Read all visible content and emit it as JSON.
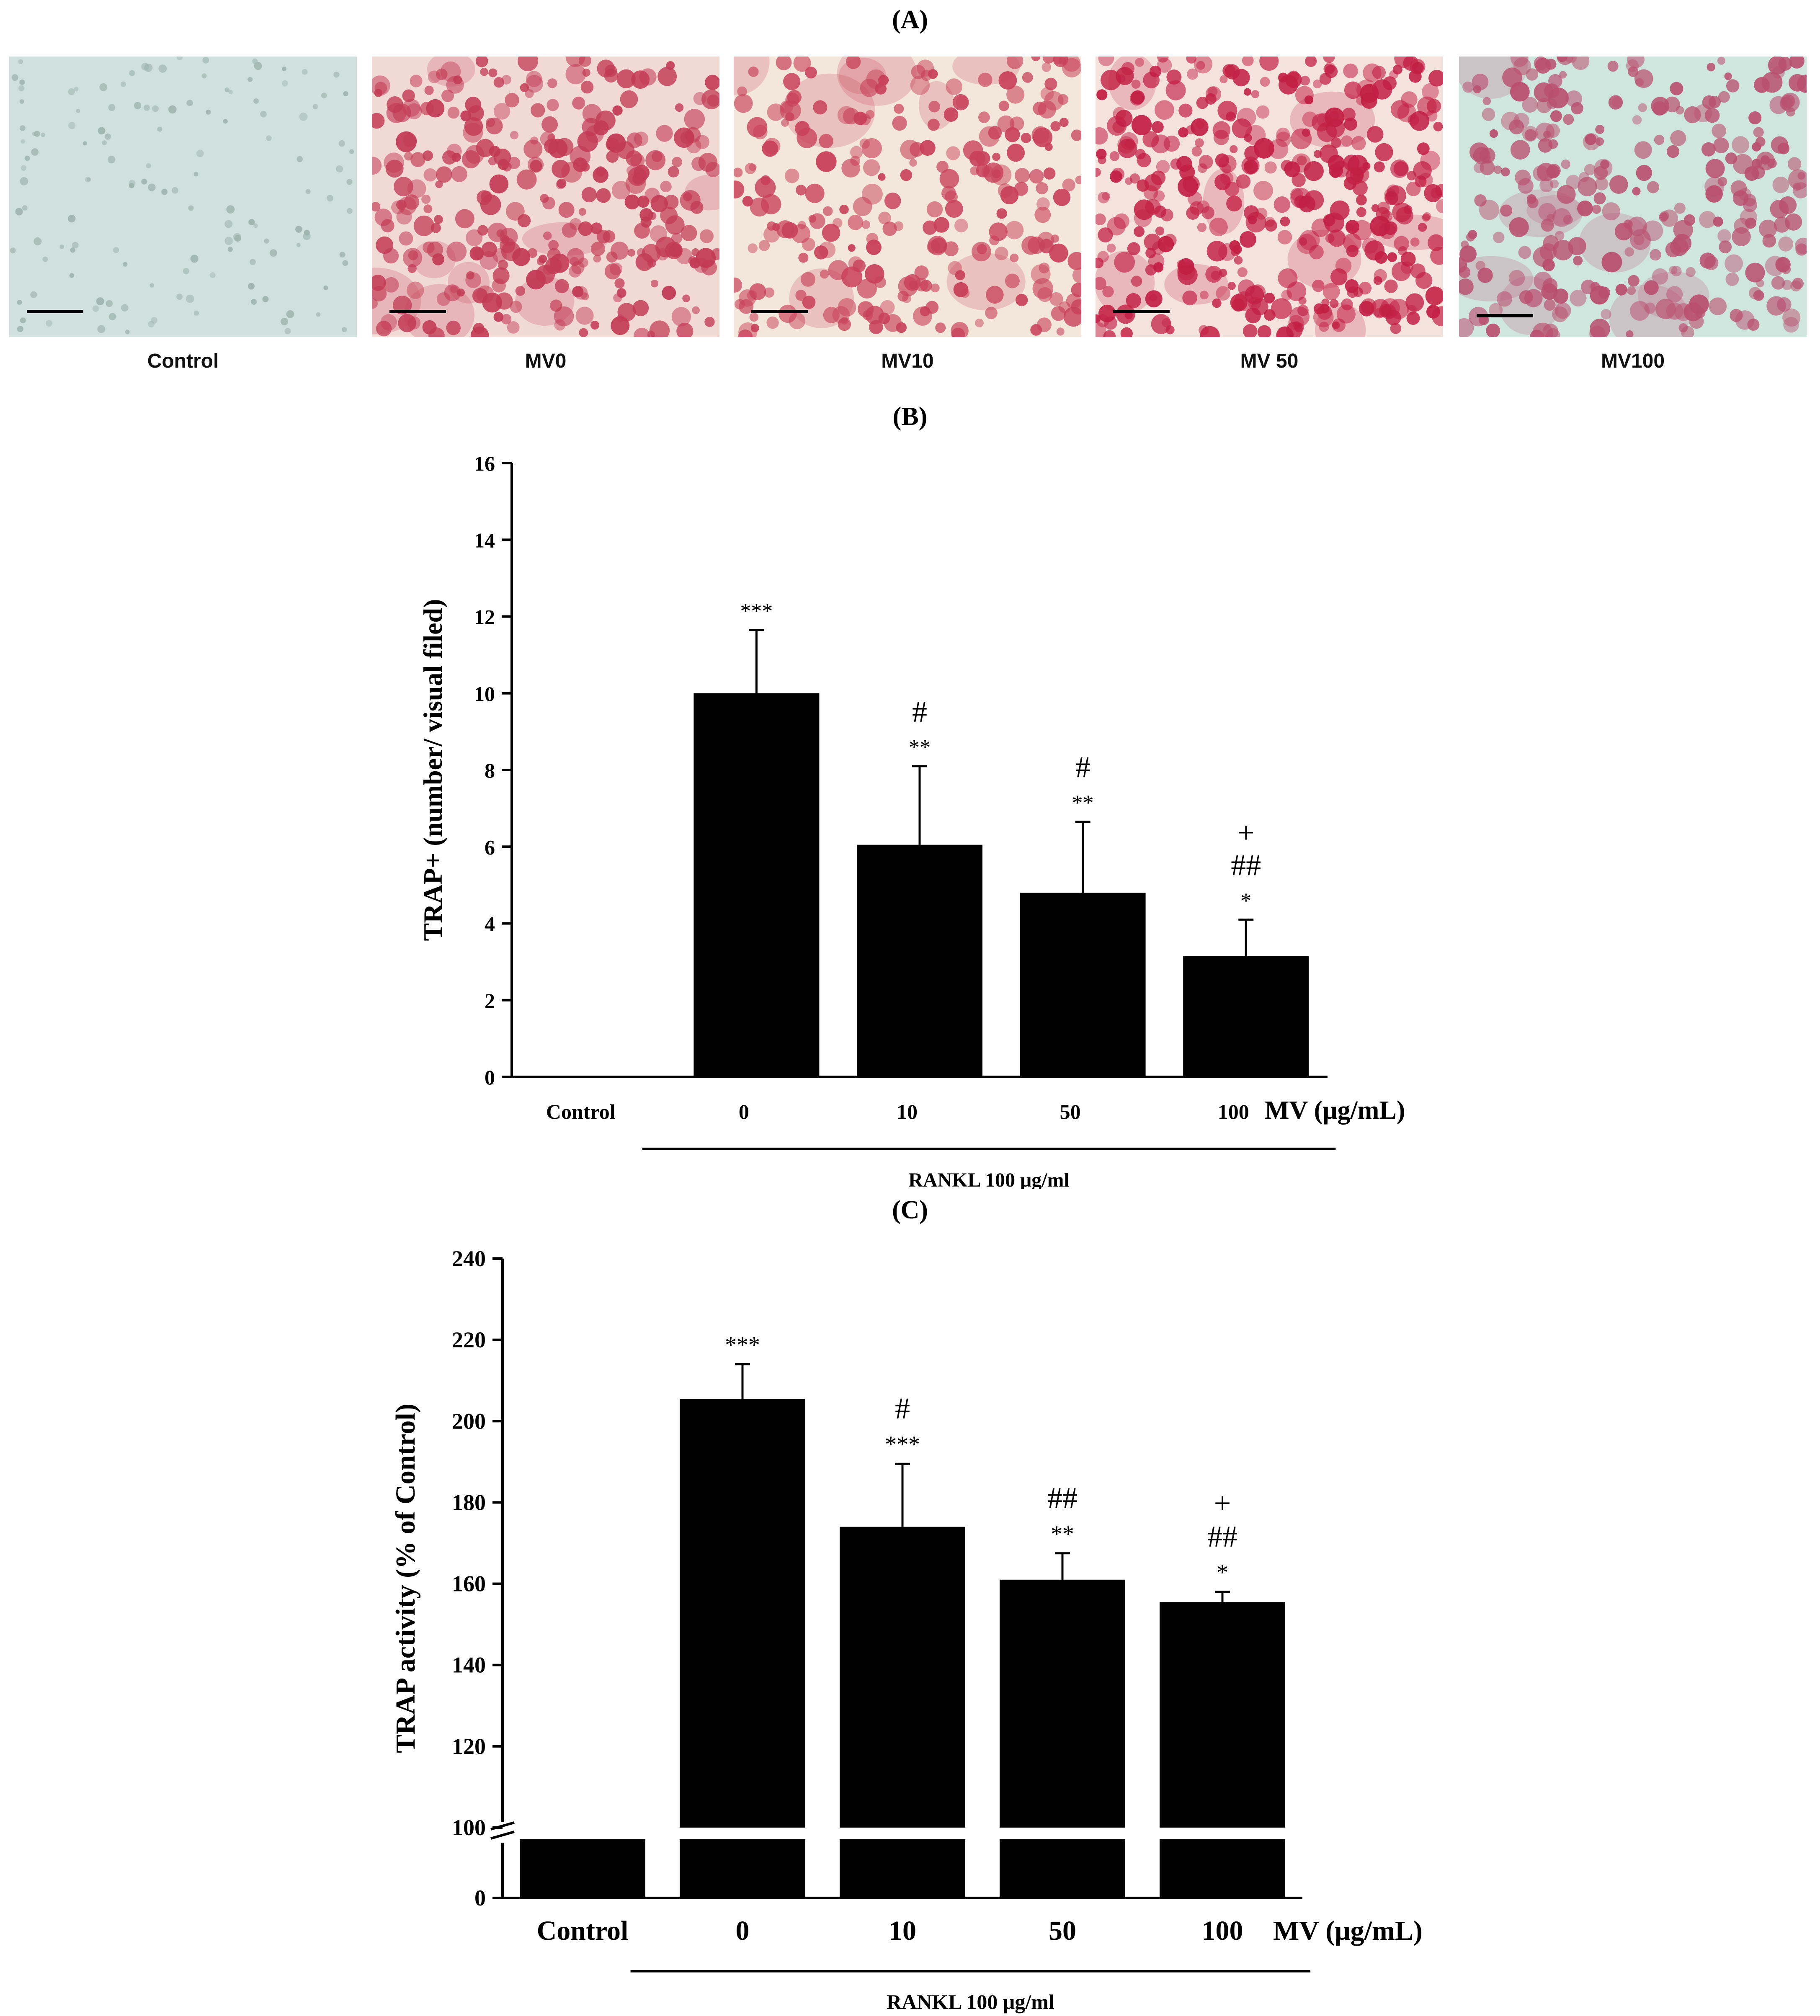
{
  "panels": {
    "A": {
      "label": "(A)"
    },
    "B": {
      "label": "(B)"
    },
    "C": {
      "label": "(C)"
    }
  },
  "micrographs": [
    {
      "label": "Control",
      "stain": "#cfe0dd",
      "cell_color": "#9fb3ad",
      "density": 0.18
    },
    {
      "label": "MV0",
      "stain": "#f1d9d4",
      "cell_color": "#c23a55",
      "density": 0.62
    },
    {
      "label": "MV10",
      "stain": "#f3e6da",
      "cell_color": "#c8405a",
      "density": 0.48
    },
    {
      "label": "MV 50",
      "stain": "#f4e3dc",
      "cell_color": "#c21f45",
      "density": 0.8
    },
    {
      "label": "MV100",
      "stain": "#cfe6df",
      "cell_color": "#b94f70",
      "density": 0.55
    }
  ],
  "chart_data": [
    {
      "type": "bar",
      "panel": "B",
      "ylabel": "TRAP+ (number/ visual filed)",
      "categories": [
        "Control",
        "0",
        "10",
        "50",
        "100"
      ],
      "values": [
        0,
        10,
        6.05,
        4.8,
        3.15
      ],
      "errors": [
        0,
        1.65,
        2.05,
        1.85,
        0.95
      ],
      "annotations": [
        [],
        [
          "***"
        ],
        [
          "#",
          "**"
        ],
        [
          "#",
          "**"
        ],
        [
          "+",
          "##",
          "*"
        ]
      ],
      "ylim": [
        0,
        16
      ],
      "yticks": [
        0,
        2,
        4,
        6,
        8,
        10,
        12,
        14,
        16
      ],
      "axis_unit_label": "MV (μg/mL)",
      "group_label": "RANKL 100 μg/ml",
      "bar_color": "#000000"
    },
    {
      "type": "bar",
      "panel": "C",
      "ylabel": "TRAP activity (% of Control)",
      "categories": [
        "Control",
        "0",
        "10",
        "50",
        "100"
      ],
      "values": [
        100,
        205.5,
        174,
        161,
        155.5
      ],
      "errors": [
        0,
        8.5,
        15.5,
        6.5,
        2.5
      ],
      "annotations": [
        [],
        [
          "***"
        ],
        [
          "#",
          "***"
        ],
        [
          "##",
          "**"
        ],
        [
          "+",
          "##",
          "*"
        ]
      ],
      "ylim": [
        0,
        240
      ],
      "axis_break": [
        0,
        90
      ],
      "yticks": [
        0,
        100,
        120,
        140,
        160,
        180,
        200,
        220,
        240
      ],
      "axis_unit_label": "MV (μg/mL)",
      "group_label": "RANKL 100 μg/ml",
      "bar_color": "#000000"
    }
  ]
}
